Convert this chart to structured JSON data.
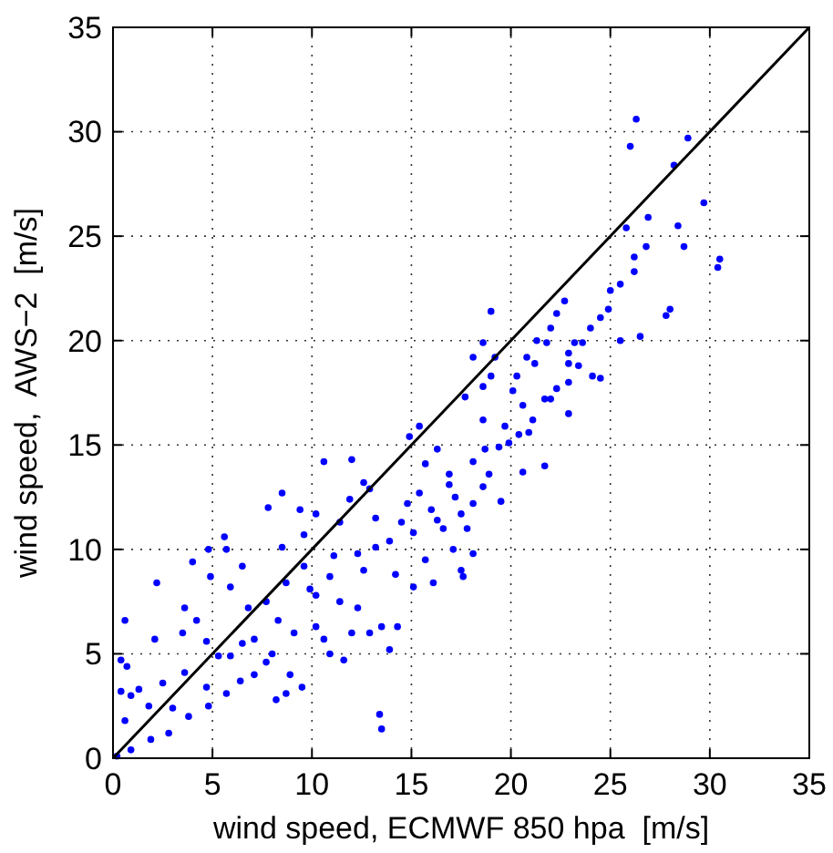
{
  "chart_data": {
    "type": "scatter",
    "xlabel": "wind speed, ECMWF 850 hpa  [m/s]",
    "ylabel": "wind speed,  AWS−2  [m/s]",
    "xlim": [
      0,
      35
    ],
    "ylim": [
      0,
      35
    ],
    "xticks": [
      0,
      5,
      10,
      15,
      20,
      25,
      30,
      35
    ],
    "yticks": [
      0,
      5,
      10,
      15,
      20,
      25,
      30,
      35
    ],
    "grid": true,
    "series": [
      {
        "marker": "circle",
        "color": "#0000ff",
        "x": [
          26.3,
          26.0,
          28.9,
          28.2,
          29.7,
          26.9,
          25.8,
          28.4,
          26.8,
          28.7,
          30.5,
          30.4,
          26.2,
          26.2,
          26.5,
          28.0,
          27.8,
          25.5,
          25.0,
          25.5,
          24.9,
          24.5,
          24.0,
          23.6,
          23.2,
          22.9,
          22.7,
          22.3,
          22.0,
          21.8,
          22.9,
          22.9,
          22.3,
          22.0,
          22.9,
          24.1,
          24.5,
          23.4,
          21.3,
          21.2,
          20.8,
          20.3,
          20.1,
          20.6,
          21.7,
          21.1,
          20.9,
          20.4,
          19.9,
          20.6,
          21.7,
          19.0,
          18.6,
          18.1,
          19.2,
          19.0,
          18.6,
          17.7,
          18.6,
          19.7,
          19.4,
          18.7,
          18.1,
          18.9,
          18.6,
          19.5,
          18.1,
          17.5,
          16.9,
          16.3,
          15.7,
          15.4,
          14.9,
          15.4,
          16.0,
          16.6,
          17.1,
          18.1,
          17.5,
          17.6,
          14.8,
          14.5,
          13.9,
          13.2,
          12.9,
          12.6,
          12.0,
          10.6,
          11.9,
          11.4,
          10.2,
          9.6,
          9.4,
          8.5,
          7.8,
          8.5,
          14.2,
          15.1,
          16.1,
          15.7,
          13.5,
          14.3,
          13.9,
          12.9,
          12.3,
          12.6,
          11.1,
          11.4,
          10.2,
          10.6,
          10.9,
          11.6,
          9.5,
          8.7,
          8.9,
          9.6,
          8.7,
          7.7,
          7.1,
          6.8,
          6.5,
          5.9,
          5.7,
          5.6,
          4.8,
          4.0,
          4.9,
          3.6,
          4.2,
          3.5,
          4.7,
          5.3,
          4.7,
          4.8,
          5.7,
          6.4,
          7.1,
          7.7,
          8.2,
          2.2,
          2.1,
          0.6,
          0.4,
          0.7,
          0.4,
          0.9,
          0.6,
          0.9,
          0.2,
          1.3,
          1.8,
          1.9,
          2.5,
          3.0,
          2.8,
          3.8,
          3.6,
          13.4,
          13.5,
          12.0,
          10.2,
          9.1,
          8.3,
          8.0,
          6.5,
          5.9,
          9.9,
          10.9,
          13.2,
          12.3,
          15.1,
          16.3,
          17.2,
          16.9,
          17.8
        ],
        "values": [
          30.6,
          29.3,
          29.7,
          28.4,
          26.6,
          25.9,
          25.4,
          25.5,
          24.5,
          24.5,
          23.9,
          23.5,
          24.0,
          23.3,
          20.2,
          21.5,
          21.2,
          20.0,
          22.4,
          22.7,
          21.5,
          21.1,
          20.6,
          19.9,
          19.9,
          19.4,
          21.9,
          21.3,
          20.6,
          19.9,
          18.9,
          18.0,
          17.7,
          17.2,
          16.5,
          18.3,
          18.2,
          18.8,
          20.0,
          18.9,
          19.2,
          18.3,
          17.6,
          16.9,
          17.2,
          16.2,
          15.6,
          15.5,
          15.1,
          13.7,
          14.0,
          21.4,
          19.9,
          19.2,
          19.2,
          18.3,
          17.8,
          17.3,
          16.2,
          15.9,
          14.9,
          14.8,
          14.2,
          13.6,
          13.0,
          12.3,
          12.2,
          11.7,
          13.6,
          14.8,
          14.1,
          15.9,
          15.4,
          12.7,
          11.9,
          11.0,
          10.0,
          9.8,
          9.0,
          8.7,
          12.2,
          11.3,
          10.4,
          11.5,
          12.9,
          13.2,
          14.3,
          14.2,
          12.4,
          11.3,
          11.7,
          10.7,
          11.9,
          10.1,
          12.0,
          12.7,
          8.8,
          8.2,
          8.4,
          9.5,
          6.3,
          6.3,
          5.2,
          6.0,
          7.2,
          9.0,
          9.7,
          7.5,
          7.8,
          5.7,
          5.0,
          4.7,
          3.4,
          3.1,
          4.0,
          9.2,
          8.4,
          7.5,
          5.7,
          7.2,
          9.2,
          8.2,
          10.0,
          10.6,
          10.0,
          9.4,
          8.7,
          7.2,
          6.6,
          6.0,
          5.6,
          4.9,
          3.4,
          2.5,
          3.1,
          3.7,
          4.0,
          4.6,
          2.8,
          8.4,
          5.7,
          6.6,
          4.7,
          4.4,
          3.2,
          3.0,
          1.8,
          0.4,
          0.1,
          3.3,
          2.5,
          0.9,
          3.6,
          2.4,
          1.2,
          2.0,
          4.1,
          2.1,
          1.4,
          6.0,
          6.3,
          6.0,
          6.6,
          5.0,
          5.5,
          4.9,
          8.1,
          8.7,
          10.1,
          9.8,
          10.8,
          11.4,
          12.5,
          13.1,
          11.0
        ]
      },
      {
        "type": "line",
        "color": "#000000",
        "x": [
          0,
          35
        ],
        "values": [
          0,
          35
        ]
      }
    ]
  }
}
